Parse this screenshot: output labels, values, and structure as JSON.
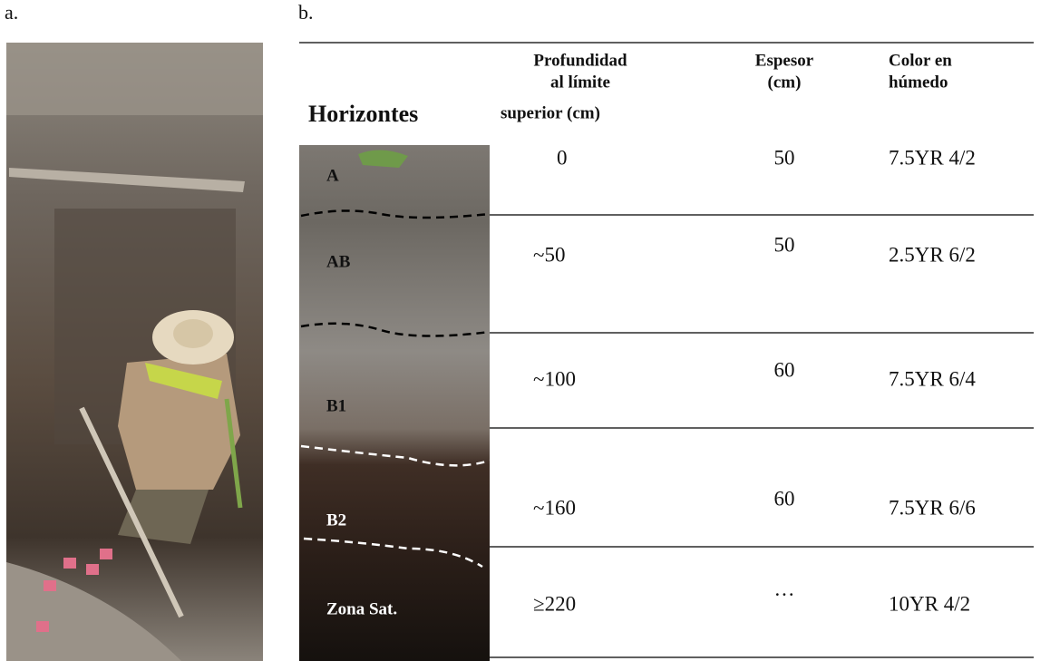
{
  "panels": {
    "a": {
      "label": "a."
    },
    "b": {
      "label": "b."
    }
  },
  "table": {
    "headers": {
      "horizon": "Horizontes",
      "depth": [
        "Profundidad",
        "al límite",
        "superior (cm)"
      ],
      "thickness": [
        "Espesor",
        "(cm)"
      ],
      "color": [
        "Color en",
        "húmedo"
      ]
    },
    "rows": [
      {
        "horizon": "A",
        "depth": "0",
        "thickness": "50",
        "color": "7.5YR 4/2"
      },
      {
        "horizon": "AB",
        "depth": "~50",
        "thickness": "50",
        "color": "2.5YR 6/2"
      },
      {
        "horizon": "B1",
        "depth": "~100",
        "thickness": "60",
        "color": "7.5YR 6/4"
      },
      {
        "horizon": "B2",
        "depth": "~160",
        "thickness": "60",
        "color": "7.5YR 6/6"
      },
      {
        "horizon": "Zona Sat.",
        "depth": "≥220",
        "thickness": "···",
        "color": "10YR 4/2"
      }
    ]
  }
}
